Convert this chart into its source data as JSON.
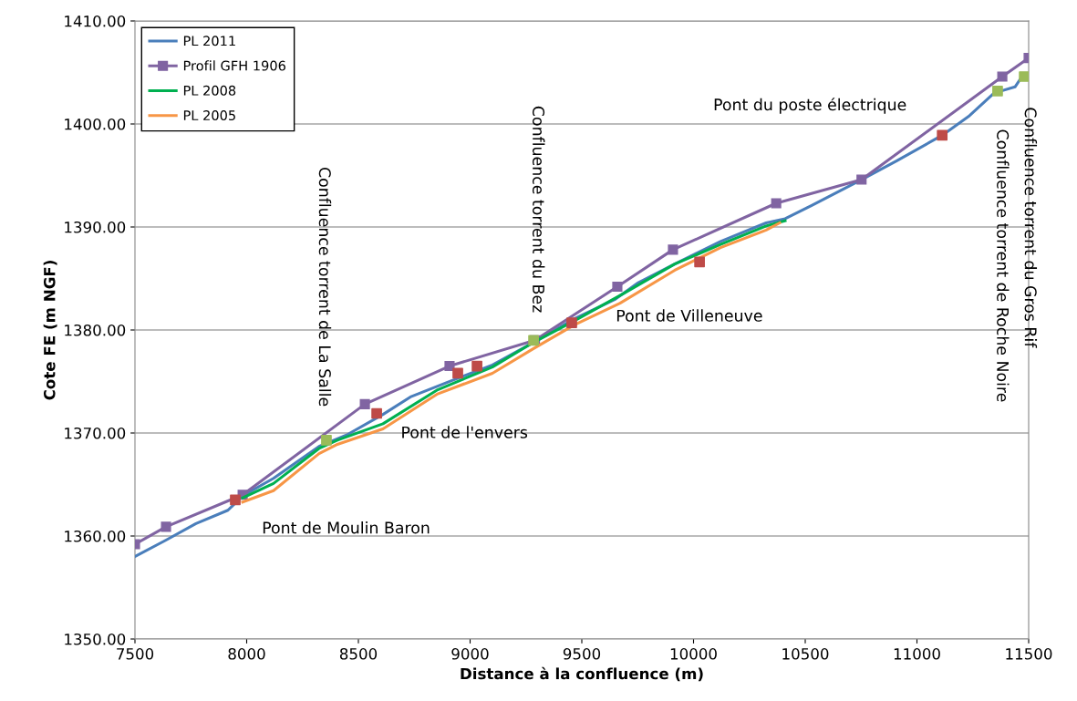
{
  "chart_data": {
    "type": "line",
    "xlabel": "Distance à la confluence (m)",
    "ylabel": "Cote FE (m NGF)",
    "xlim": [
      7500,
      11500
    ],
    "xticks": [
      7500,
      8000,
      8500,
      9000,
      9500,
      10000,
      10500,
      11000,
      11500
    ],
    "ylim": [
      1350,
      1410
    ],
    "yticks": [
      {
        "value": 1350,
        "label": "1350.00"
      },
      {
        "value": 1360,
        "label": "1360.00"
      },
      {
        "value": 1370,
        "label": "1370.00"
      },
      {
        "value": 1380,
        "label": "1380.00"
      },
      {
        "value": 1390,
        "label": "1390.00"
      },
      {
        "value": 1400,
        "label": "1400.00"
      },
      {
        "value": 1410,
        "label": "1410.00"
      }
    ],
    "grid": "y",
    "legend": "top left",
    "series": [
      {
        "name": "PL 2011",
        "color": "#4a7ebb",
        "marker": "none",
        "x": [
          7500,
          7639,
          7773,
          7916,
          7982,
          8120,
          8324,
          8447,
          8610,
          8733,
          8896,
          9100,
          9284,
          9467,
          9651,
          9753,
          9916,
          10121,
          10325,
          10410,
          10529,
          10752,
          10908,
          11113,
          11235,
          11345,
          11439,
          11476
        ],
        "values": [
          1358.0,
          1359.6,
          1361.2,
          1362.5,
          1363.9,
          1365.6,
          1368.7,
          1369.8,
          1371.8,
          1373.5,
          1374.9,
          1376.6,
          1378.8,
          1381.1,
          1383.0,
          1384.6,
          1386.4,
          1388.6,
          1390.4,
          1390.8,
          1392.1,
          1394.6,
          1396.4,
          1398.9,
          1400.8,
          1403.0,
          1403.6,
          1404.8
        ]
      },
      {
        "name": "Profil GFH 1906",
        "color": "#8064a2",
        "marker": "square",
        "x": [
          7500,
          7639,
          7982,
          8529,
          8908,
          9290,
          9659,
          9908,
          10370,
          10752,
          11382,
          11500
        ],
        "values": [
          1359.2,
          1360.9,
          1364.0,
          1372.8,
          1376.5,
          1379.0,
          1384.2,
          1387.8,
          1392.3,
          1394.6,
          1404.6,
          1406.4
        ]
      },
      {
        "name": "PL 2008",
        "color": "#00b050",
        "marker": "none",
        "x": [
          7982,
          8120,
          8324,
          8406,
          8610,
          8855,
          9100,
          9284,
          9467,
          9684,
          9916,
          10121,
          10325,
          10410
        ],
        "values": [
          1363.7,
          1365.1,
          1368.5,
          1369.3,
          1370.9,
          1374.2,
          1376.4,
          1378.8,
          1380.9,
          1383.5,
          1386.4,
          1388.3,
          1390.1,
          1390.6
        ]
      },
      {
        "name": "PL 2005",
        "color": "#f79646",
        "marker": "none",
        "x": [
          7982,
          8120,
          8324,
          8406,
          8610,
          8855,
          9100,
          9284,
          9467,
          9671,
          9916,
          10121,
          10325,
          10386
        ],
        "values": [
          1363.3,
          1364.4,
          1368.0,
          1368.9,
          1370.4,
          1373.8,
          1375.8,
          1378.2,
          1380.5,
          1382.6,
          1385.8,
          1388.0,
          1389.7,
          1390.4
        ]
      },
      {
        "type": "scatter",
        "color": "#be4b48",
        "marker": "square",
        "x": [
          7949,
          8582,
          8945,
          9031,
          9455,
          10027,
          11113
        ],
        "values": [
          1363.5,
          1371.9,
          1375.8,
          1376.5,
          1380.7,
          1386.6,
          1398.9
        ]
      },
      {
        "type": "scatter",
        "color": "#9bbb59",
        "marker": "square",
        "x": [
          8357,
          9284,
          11361,
          11480
        ],
        "values": [
          1369.3,
          1379.0,
          1403.2,
          1404.6
        ]
      }
    ],
    "annotations": [
      {
        "text": "Pont de Moulin Baron",
        "x": 7949,
        "y": 1363.5
      },
      {
        "text": "Pont de l'envers",
        "x": 8582,
        "y": 1371.9
      },
      "Pont de Villeneuve",
      "Pont du poste électrique",
      "Confluence torrent de La Salle",
      "Confluence torrent du Bez",
      {
        "text": "Confluence torrent de Roche Noire",
        "x": 11361,
        "y": 1403.2
      },
      {
        "text": "Confluence torrent du Gros Rif",
        "x": 11480,
        "y": 1404.6
      }
    ]
  }
}
